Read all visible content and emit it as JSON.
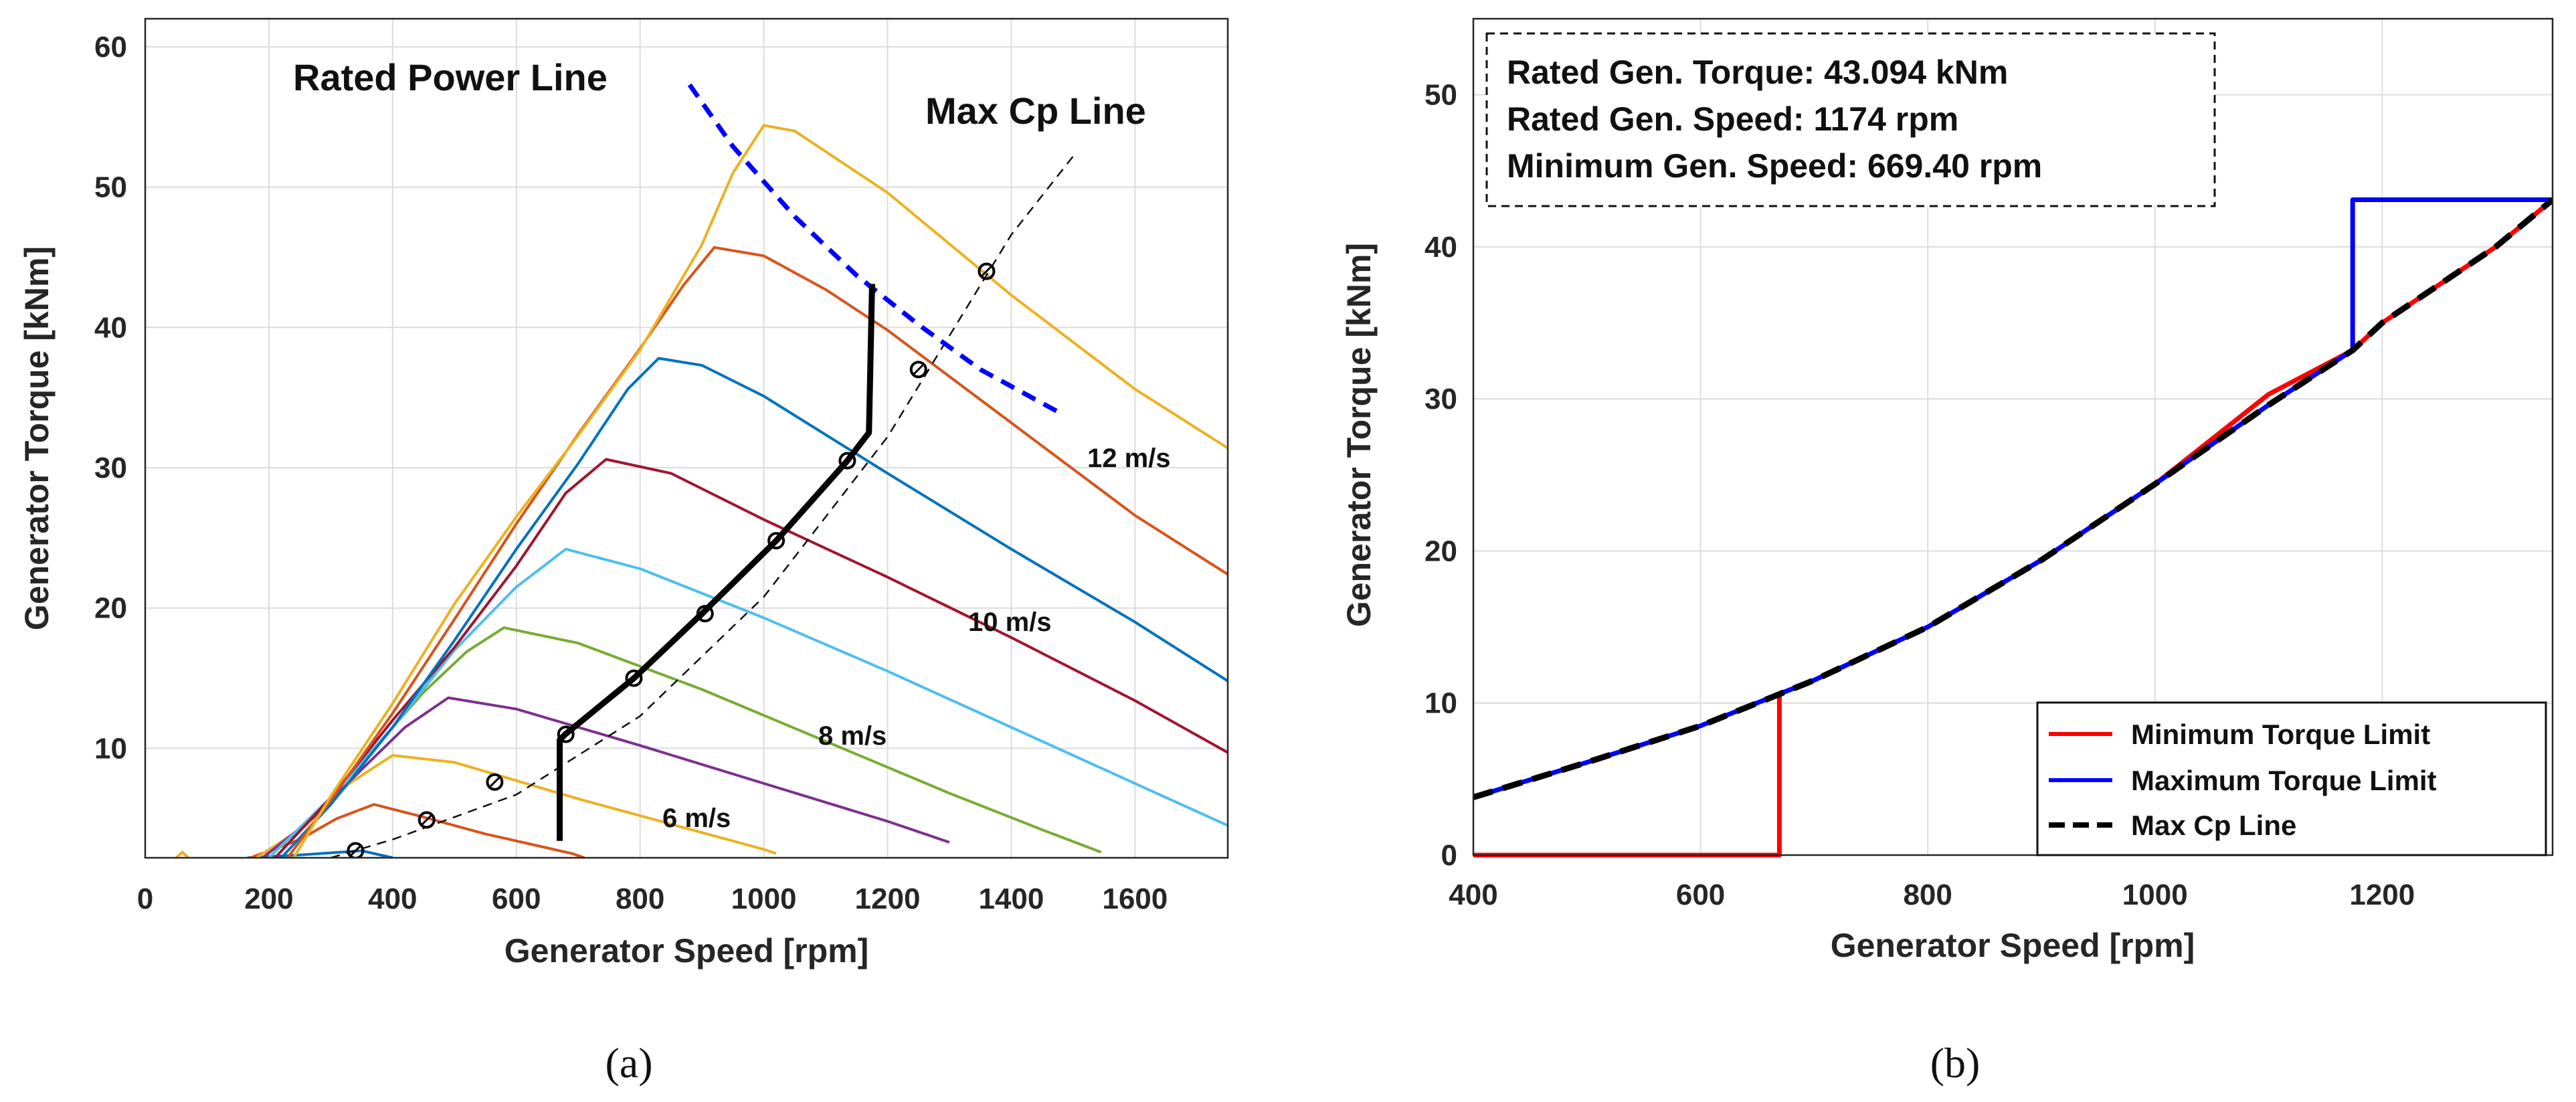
{
  "chart_data": [
    {
      "panel": "a",
      "panel_label": "(a)",
      "type": "line",
      "xlabel": "Generator Speed [rpm]",
      "ylabel": "Generator Torque [kNm]",
      "xlim": [
        0,
        1750
      ],
      "ylim": [
        2.2,
        62
      ],
      "xticks": [
        "0",
        "200",
        "400",
        "600",
        "800",
        "1000",
        "1200",
        "1400",
        "1600"
      ],
      "yticks": [
        "10",
        "20",
        "30",
        "40",
        "50",
        "60"
      ],
      "grid": true,
      "annotations": {
        "rated_power_line": "Rated Power Line",
        "max_cp_line": "Max Cp Line",
        "wind_12": "12 m/s",
        "wind_10": "10 m/s",
        "wind_8": "8 m/s",
        "wind_6": "6 m/s"
      },
      "wind_curves": [
        {
          "color": "#0072BD",
          "points": [
            [
              165,
              2.2
            ],
            [
              250,
              2.4
            ],
            [
              350,
              2.7
            ],
            [
              400,
              2.2
            ]
          ]
        },
        {
          "color": "#D95319",
          "points": [
            [
              170,
              2.2
            ],
            [
              250,
              3.5
            ],
            [
              310,
              5
            ],
            [
              370,
              6
            ],
            [
              450,
              5.1
            ],
            [
              550,
              3.9
            ],
            [
              620,
              3.2
            ],
            [
              690,
              2.5
            ],
            [
              710,
              2.2
            ]
          ]
        },
        {
          "color": "#EDB120",
          "points": [
            [
              180,
              2.2
            ],
            [
              260,
              4.5
            ],
            [
              330,
              7.5
            ],
            [
              400,
              9.5
            ],
            [
              500,
              9
            ],
            [
              600,
              7.7
            ],
            [
              700,
              6.4
            ],
            [
              800,
              5.2
            ],
            [
              900,
              4
            ],
            [
              1000,
              2.8
            ],
            [
              1020,
              2.5
            ]
          ]
        },
        {
          "color": "#7E2F8E",
          "points": [
            [
              190,
              2.2
            ],
            [
              270,
              5
            ],
            [
              350,
              8.5
            ],
            [
              420,
              11.5
            ],
            [
              490,
              13.6
            ],
            [
              600,
              12.8
            ],
            [
              800,
              10.2
            ],
            [
              1000,
              7.5
            ],
            [
              1200,
              4.8
            ],
            [
              1300,
              3.3
            ]
          ]
        },
        {
          "color": "#77AC30",
          "points": [
            [
              200,
              2.2
            ],
            [
              290,
              6
            ],
            [
              370,
              10
            ],
            [
              450,
              14
            ],
            [
              520,
              16.9
            ],
            [
              580,
              18.6
            ],
            [
              700,
              17.5
            ],
            [
              900,
              14.2
            ],
            [
              1100,
              10.5
            ],
            [
              1300,
              6.8
            ],
            [
              1450,
              4.2
            ],
            [
              1545,
              2.6
            ]
          ]
        },
        {
          "color": "#4DBEEE",
          "points": [
            [
              200,
              2.2
            ],
            [
              300,
              6.5
            ],
            [
              400,
              11.5
            ],
            [
              500,
              17
            ],
            [
              600,
              21.5
            ],
            [
              680,
              24.2
            ],
            [
              800,
              22.8
            ],
            [
              1000,
              19.3
            ],
            [
              1200,
              15.5
            ],
            [
              1400,
              11.5
            ],
            [
              1600,
              7.5
            ],
            [
              1750,
              4.5
            ]
          ]
        },
        {
          "color": "#A2142F",
          "points": [
            [
              210,
              2.2
            ],
            [
              300,
              6.5
            ],
            [
              400,
              12
            ],
            [
              500,
              17.2
            ],
            [
              600,
              23
            ],
            [
              680,
              28.2
            ],
            [
              745,
              30.6
            ],
            [
              850,
              29.6
            ],
            [
              1000,
              26.3
            ],
            [
              1200,
              22.2
            ],
            [
              1400,
              17.9
            ],
            [
              1600,
              13.4
            ],
            [
              1750,
              9.7
            ]
          ]
        },
        {
          "color": "#0072BD",
          "points": [
            [
              220,
              2.2
            ],
            [
              300,
              6
            ],
            [
              400,
              11.5
            ],
            [
              500,
              17.7
            ],
            [
              600,
              24.2
            ],
            [
              700,
              30.3
            ],
            [
              780,
              35.6
            ],
            [
              830,
              37.8
            ],
            [
              900,
              37.3
            ],
            [
              1000,
              35.1
            ],
            [
              1200,
              29.6
            ],
            [
              1400,
              24.2
            ],
            [
              1600,
              19
            ],
            [
              1750,
              14.8
            ]
          ]
        },
        {
          "color": "#D95319",
          "points": [
            [
              230,
              2.2
            ],
            [
              300,
              6.3
            ],
            [
              400,
              12.5
            ],
            [
              500,
              19.2
            ],
            [
              600,
              26
            ],
            [
              700,
              32.4
            ],
            [
              800,
              38.5
            ],
            [
              870,
              43
            ],
            [
              920,
              45.7
            ],
            [
              1000,
              45.1
            ],
            [
              1100,
              42.7
            ],
            [
              1200,
              39.8
            ],
            [
              1400,
              33.2
            ],
            [
              1600,
              26.6
            ],
            [
              1750,
              22.4
            ]
          ]
        },
        {
          "color": "#EDB120",
          "points": [
            [
              240,
              2.2
            ],
            [
              300,
              6.6
            ],
            [
              400,
              13.2
            ],
            [
              500,
              20.3
            ],
            [
              600,
              26.5
            ],
            [
              700,
              32.3
            ],
            [
              800,
              38.4
            ],
            [
              900,
              45.9
            ],
            [
              950,
              51
            ],
            [
              1000,
              54.4
            ],
            [
              1050,
              54
            ],
            [
              1200,
              49.6
            ],
            [
              1400,
              42.3
            ],
            [
              1600,
              35.6
            ],
            [
              1750,
              31.4
            ]
          ]
        },
        {
          "color": "#EDB120",
          "points": [
            [
              50,
              2.2
            ],
            [
              60,
              2.6
            ],
            [
              70,
              2.2
            ]
          ]
        }
      ],
      "max_cp_line_points": [
        [
          300,
          2.2
        ],
        [
          400,
          3.5
        ],
        [
          600,
          6.7
        ],
        [
          800,
          12.3
        ],
        [
          1000,
          20.8
        ],
        [
          1200,
          32.2
        ],
        [
          1400,
          46.6
        ],
        [
          1500,
          52.2
        ]
      ],
      "rated_power_line_points": [
        [
          880,
          57.3
        ],
        [
          950,
          52.9
        ],
        [
          1050,
          47.9
        ],
        [
          1150,
          43.7
        ],
        [
          1250,
          40.2
        ],
        [
          1350,
          37
        ],
        [
          1475,
          34
        ]
      ],
      "operating_line_points": [
        [
          670,
          3.4
        ],
        [
          670,
          10.6
        ],
        [
          679,
          11
        ],
        [
          790,
          15
        ],
        [
          900,
          19.6
        ],
        [
          1020,
          24.8
        ],
        [
          1135,
          30.5
        ],
        [
          1170,
          32.5
        ],
        [
          1175,
          43.1
        ]
      ],
      "markers": [
        [
          340,
          2.7
        ],
        [
          455,
          4.9
        ],
        [
          565,
          7.6
        ],
        [
          680,
          11
        ],
        [
          790,
          15
        ],
        [
          905,
          19.6
        ],
        [
          1020,
          24.8
        ],
        [
          1135,
          30.5
        ],
        [
          1250,
          37
        ],
        [
          1360,
          44
        ]
      ]
    },
    {
      "panel": "b",
      "panel_label": "(b)",
      "type": "line",
      "xlabel": "Generator Speed [rpm]",
      "ylabel": "Generator Torque [kNm]",
      "xlim": [
        400,
        1350
      ],
      "ylim": [
        0,
        55
      ],
      "xticks": [
        "400",
        "600",
        "800",
        "1000",
        "1200"
      ],
      "yticks": [
        "0",
        "10",
        "20",
        "30",
        "40",
        "50"
      ],
      "grid": true,
      "info_box": [
        "Rated Gen. Torque: 43.094 kNm",
        "Rated Gen. Speed: 1174 rpm",
        "Minimum Gen. Speed: 669.40 rpm"
      ],
      "legend": {
        "position": "bottom-right",
        "entries": [
          {
            "label": "Minimum Torque Limit",
            "color": "#FF0000",
            "style": "solid"
          },
          {
            "label": "Maximum Torque Limit",
            "color": "#0000FF",
            "style": "solid"
          },
          {
            "label": "Max Cp Line",
            "color": "#000000",
            "style": "dashed"
          }
        ]
      },
      "series": [
        {
          "name": "Minimum Torque Limit",
          "color": "#FF0000",
          "points": [
            [
              400,
              0
            ],
            [
              669.4,
              0
            ],
            [
              669.4,
              10.6
            ],
            [
              700,
              11.5
            ],
            [
              800,
              15
            ],
            [
              900,
              19.4
            ],
            [
              1000,
              24.4
            ],
            [
              1100,
              30.3
            ],
            [
              1174,
              33.2
            ],
            [
              1200,
              35
            ],
            [
              1300,
              40
            ],
            [
              1350,
              43.1
            ]
          ]
        },
        {
          "name": "Maximum Torque Limit",
          "color": "#0000FF",
          "points": [
            [
              400,
              3.8
            ],
            [
              500,
              6.1
            ],
            [
              600,
              8.5
            ],
            [
              669.4,
              10.6
            ],
            [
              700,
              11.5
            ],
            [
              800,
              15
            ],
            [
              900,
              19.4
            ],
            [
              1000,
              24.4
            ],
            [
              1100,
              29.6
            ],
            [
              1174,
              33.2
            ],
            [
              1174,
              43.1
            ],
            [
              1350,
              43.1
            ]
          ]
        },
        {
          "name": "Max Cp Line",
          "color": "#000000",
          "points": [
            [
              400,
              3.8
            ],
            [
              500,
              6.1
            ],
            [
              600,
              8.5
            ],
            [
              700,
              11.5
            ],
            [
              800,
              15
            ],
            [
              900,
              19.4
            ],
            [
              1000,
              24.4
            ],
            [
              1100,
              29.6
            ],
            [
              1174,
              33.2
            ],
            [
              1200,
              35
            ],
            [
              1300,
              40
            ],
            [
              1350,
              43.1
            ]
          ]
        }
      ]
    }
  ]
}
